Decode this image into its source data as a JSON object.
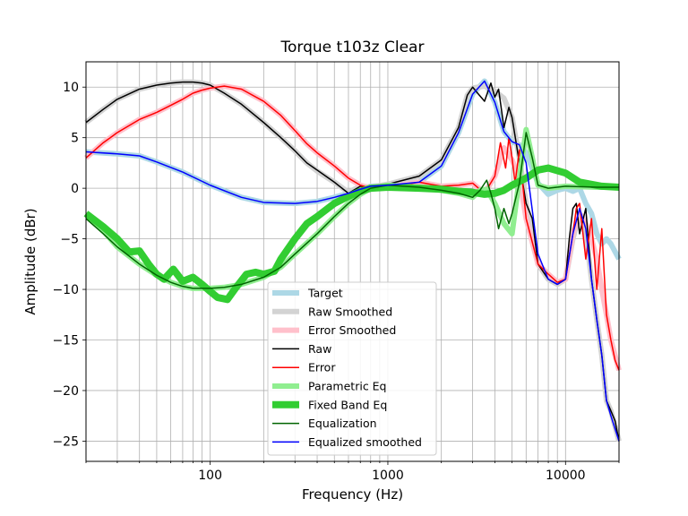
{
  "chart_data": {
    "type": "line",
    "title": "Torque t103z Clear",
    "xlabel": "Frequency (Hz)",
    "ylabel": "Amplitude (dBr)",
    "xscale": "log",
    "xlim": [
      20,
      20000
    ],
    "ylim": [
      -27,
      12.5
    ],
    "grid": true,
    "legend_position": "bottom-center",
    "x_tick_labels": [
      {
        "value": 100,
        "label": "100"
      },
      {
        "value": 1000,
        "label": "1000"
      },
      {
        "value": 10000,
        "label": "10000"
      }
    ],
    "y_tick_labels": [
      {
        "value": 10,
        "label": "10"
      },
      {
        "value": 5,
        "label": "5"
      },
      {
        "value": 0,
        "label": "0"
      },
      {
        "value": -5,
        "label": "−5"
      },
      {
        "value": -10,
        "label": "−10"
      },
      {
        "value": -15,
        "label": "−15"
      },
      {
        "value": -20,
        "label": "−20"
      },
      {
        "value": -25,
        "label": "−25"
      }
    ],
    "series": [
      {
        "name": "Target",
        "color": "#add8e6",
        "width": 6,
        "x": [
          20,
          30,
          40,
          50,
          70,
          100,
          150,
          200,
          300,
          400,
          500,
          600,
          700,
          800,
          1000,
          1500,
          2000,
          2500,
          3000,
          3500,
          4000,
          4500,
          5000,
          5500,
          6000,
          7000,
          8000,
          9000,
          10000,
          11000,
          12000,
          13000,
          14000,
          15000,
          16000,
          17000,
          18000,
          20000
        ],
        "y": [
          3.6,
          3.4,
          3.2,
          2.6,
          1.6,
          0.3,
          -0.9,
          -1.4,
          -1.5,
          -1.3,
          -0.9,
          -0.5,
          -0.1,
          0.2,
          0.3,
          0.6,
          2.2,
          5.5,
          9.3,
          10.6,
          8.5,
          5.6,
          4.6,
          4.3,
          3.5,
          0.5,
          -0.6,
          -0.2,
          0,
          -0.3,
          0,
          -1.5,
          -2.5,
          -4.5,
          -5.5,
          -5.0,
          -5.5,
          -7.0
        ]
      },
      {
        "name": "Raw Smoothed",
        "color": "#d3d3d3",
        "width": 6,
        "x": [
          20,
          25,
          30,
          40,
          50,
          60,
          70,
          80,
          90,
          100,
          120,
          150,
          200,
          250,
          300,
          350,
          400,
          500,
          600,
          700,
          800,
          1000,
          1500,
          2000,
          2500,
          2800,
          3000,
          3500,
          4000,
          4500,
          5000,
          5500,
          6000,
          7000,
          8000,
          9000,
          10000,
          11000,
          12000,
          13000,
          14000,
          15000,
          16000,
          17000,
          18000,
          20000
        ],
        "y": [
          6.5,
          7.8,
          8.8,
          9.8,
          10.2,
          10.4,
          10.5,
          10.5,
          10.4,
          10.2,
          9.4,
          8.3,
          6.5,
          5.0,
          3.7,
          2.5,
          1.7,
          0.6,
          -0.4,
          0.2,
          0.1,
          0.4,
          1.2,
          2.8,
          6.0,
          9.2,
          9.9,
          10.1,
          9.6,
          8.9,
          7.0,
          3.0,
          -1.5,
          -7.5,
          -9.0,
          -9.5,
          -9.0,
          -5.0,
          -2.5,
          -4.5,
          -9.0,
          -13.0,
          -16.5,
          -21.0,
          -22.0,
          -25.0
        ]
      },
      {
        "name": "Error Smoothed",
        "color": "#ffc0cb",
        "width": 6,
        "x": [
          20,
          25,
          30,
          40,
          50,
          60,
          70,
          80,
          90,
          100,
          120,
          150,
          200,
          250,
          300,
          350,
          400,
          500,
          600,
          700,
          800,
          1000,
          1500,
          2000,
          2500,
          3000,
          3500,
          4000,
          4500,
          5000,
          5500,
          6000,
          7000,
          8000,
          9000,
          10000,
          11000,
          12000,
          13000,
          14000,
          15000,
          16000,
          17000,
          18000,
          20000
        ],
        "y": [
          3.0,
          4.5,
          5.5,
          6.8,
          7.5,
          8.2,
          8.8,
          9.4,
          9.7,
          9.9,
          10.1,
          9.8,
          8.6,
          7.2,
          5.7,
          4.4,
          3.5,
          2.2,
          1.0,
          0.3,
          0.0,
          0.1,
          0.6,
          0.2,
          0.3,
          0.5,
          -0.5,
          1.2,
          4.0,
          2.8,
          1.0,
          -3.0,
          -7.5,
          -8.5,
          -9.3,
          -9.0,
          -4.5,
          -2.5,
          -3.5,
          -5.0,
          -7.0,
          -10.0,
          -12.5,
          -15.0,
          -18.0
        ]
      },
      {
        "name": "Raw",
        "color": "#000000",
        "width": 1.5,
        "x": [
          20,
          25,
          30,
          40,
          50,
          60,
          70,
          80,
          90,
          100,
          120,
          150,
          200,
          250,
          300,
          350,
          400,
          500,
          600,
          700,
          800,
          1000,
          1500,
          2000,
          2500,
          2800,
          3000,
          3200,
          3500,
          3800,
          4000,
          4200,
          4500,
          4800,
          5000,
          5500,
          6000,
          6500,
          7000,
          8000,
          9000,
          10000,
          10500,
          11000,
          11500,
          12000,
          13000,
          14000,
          15000,
          16000,
          17000,
          18000,
          19000,
          20000
        ],
        "y": [
          6.5,
          7.8,
          8.8,
          9.8,
          10.2,
          10.4,
          10.5,
          10.5,
          10.4,
          10.2,
          9.4,
          8.3,
          6.5,
          5.0,
          3.7,
          2.5,
          1.8,
          0.6,
          -0.5,
          0.2,
          0.1,
          0.4,
          1.2,
          2.8,
          6.0,
          9.2,
          10.0,
          9.4,
          8.6,
          10.4,
          9.0,
          9.8,
          6.0,
          8.0,
          7.0,
          2.5,
          -1.5,
          -3.0,
          -7.5,
          -9.0,
          -9.5,
          -9.0,
          -5.0,
          -2.0,
          -1.5,
          -4.5,
          -2.0,
          -9.0,
          -13.0,
          -16.5,
          -21.0,
          -22.0,
          -23.0,
          -25.0
        ]
      },
      {
        "name": "Error",
        "color": "#ff0000",
        "width": 1.5,
        "x": [
          20,
          25,
          30,
          40,
          50,
          60,
          70,
          80,
          90,
          100,
          120,
          150,
          200,
          250,
          300,
          350,
          400,
          500,
          600,
          700,
          800,
          1000,
          1500,
          2000,
          2500,
          3000,
          3500,
          4000,
          4300,
          4600,
          4800,
          5000,
          5200,
          5500,
          6000,
          7000,
          8000,
          9000,
          10000,
          11000,
          11500,
          12000,
          13000,
          14000,
          15000,
          16000,
          17000,
          18000,
          19000,
          20000
        ],
        "y": [
          3.0,
          4.5,
          5.5,
          6.8,
          7.5,
          8.2,
          8.8,
          9.4,
          9.7,
          9.9,
          10.1,
          9.8,
          8.6,
          7.2,
          5.7,
          4.4,
          3.5,
          2.2,
          1.0,
          0.3,
          0.0,
          0.1,
          0.6,
          0.2,
          0.3,
          0.5,
          -0.5,
          1.2,
          4.5,
          2.0,
          5.0,
          3.0,
          0.5,
          3.8,
          -3.0,
          -7.5,
          -8.5,
          -9.3,
          -9.0,
          -4.5,
          -2.0,
          -1.5,
          -7.0,
          -3.0,
          -10.0,
          -4.0,
          -12.5,
          -15.0,
          -17.0,
          -18.0
        ]
      },
      {
        "name": "Parametric Eq",
        "color": "#90ee90",
        "width": 6,
        "x": [
          20,
          25,
          30,
          40,
          50,
          60,
          70,
          80,
          100,
          120,
          150,
          200,
          250,
          300,
          400,
          500,
          600,
          700,
          800,
          1000,
          1500,
          2000,
          2500,
          3000,
          3300,
          3600,
          4000,
          4500,
          5000,
          5500,
          6000,
          6500,
          7000,
          8000,
          10000,
          15000,
          20000
        ],
        "y": [
          -2.5,
          -4.2,
          -5.8,
          -7.5,
          -8.6,
          -9.3,
          -9.7,
          -9.9,
          -9.9,
          -9.8,
          -9.5,
          -8.8,
          -7.8,
          -6.5,
          -4.5,
          -2.8,
          -1.5,
          -0.6,
          0.0,
          0.3,
          0.1,
          -0.2,
          -0.5,
          -0.9,
          -0.2,
          -0.1,
          -1.5,
          -3.5,
          -4.5,
          1.0,
          5.8,
          3.0,
          0.3,
          0.0,
          0.2,
          0.1,
          0.1
        ]
      },
      {
        "name": "Fixed Band Eq",
        "color": "#32cd32",
        "width": 8,
        "x": [
          20,
          25,
          30,
          35,
          40,
          45,
          50,
          55,
          62,
          70,
          80,
          90,
          100,
          110,
          125,
          140,
          160,
          180,
          200,
          230,
          250,
          300,
          350,
          400,
          500,
          600,
          700,
          800,
          1000,
          1500,
          2000,
          2500,
          3000,
          3500,
          4000,
          4500,
          5000,
          6000,
          7000,
          8000,
          10000,
          12000,
          16000,
          20000
        ],
        "y": [
          -2.5,
          -3.8,
          -5.0,
          -6.3,
          -6.2,
          -7.5,
          -8.5,
          -9.0,
          -8.0,
          -9.2,
          -8.8,
          -9.5,
          -10.2,
          -10.8,
          -11.0,
          -9.8,
          -8.5,
          -8.3,
          -8.5,
          -8.2,
          -7.0,
          -5.0,
          -3.5,
          -2.8,
          -1.5,
          -0.8,
          -0.3,
          0.0,
          0.1,
          0.0,
          -0.1,
          -0.3,
          -0.4,
          -0.6,
          -0.5,
          -0.2,
          0.3,
          1.0,
          1.8,
          2.0,
          1.5,
          0.6,
          0.2,
          0.1
        ]
      },
      {
        "name": "Equalization",
        "color": "#006400",
        "width": 1.5,
        "x": [
          20,
          25,
          30,
          40,
          50,
          60,
          70,
          80,
          100,
          120,
          150,
          200,
          250,
          300,
          400,
          500,
          600,
          700,
          800,
          1000,
          1500,
          2000,
          2500,
          3000,
          3300,
          3600,
          3800,
          4000,
          4200,
          4500,
          4800,
          5000,
          5500,
          6000,
          6500,
          7000,
          8000,
          10000,
          15000,
          20000
        ],
        "y": [
          -3.0,
          -4.5,
          -5.8,
          -7.5,
          -8.6,
          -9.3,
          -9.7,
          -9.9,
          -9.9,
          -9.8,
          -9.5,
          -8.8,
          -7.8,
          -6.5,
          -4.5,
          -2.8,
          -1.5,
          -0.6,
          0.0,
          0.3,
          0.1,
          -0.2,
          -0.5,
          -0.9,
          -0.2,
          0.8,
          -0.5,
          -2.0,
          -4.0,
          -2.0,
          -3.5,
          -2.5,
          0.5,
          5.5,
          3.0,
          0.3,
          0.0,
          0.2,
          0.1,
          0.1
        ]
      },
      {
        "name": "Equalized smoothed",
        "color": "#0000ff",
        "width": 1.5,
        "x": [
          20,
          30,
          40,
          50,
          70,
          100,
          150,
          200,
          300,
          400,
          500,
          600,
          700,
          800,
          1000,
          1500,
          2000,
          2500,
          3000,
          3500,
          4000,
          4500,
          5000,
          5500,
          6000,
          7000,
          8000,
          9000,
          10000,
          11000,
          12000,
          13000,
          14000,
          15000,
          16000,
          17000,
          18000,
          20000
        ],
        "y": [
          3.6,
          3.4,
          3.2,
          2.6,
          1.6,
          0.3,
          -0.9,
          -1.4,
          -1.5,
          -1.3,
          -0.9,
          -0.5,
          -0.1,
          0.2,
          0.3,
          0.6,
          2.2,
          5.5,
          9.3,
          10.6,
          8.5,
          5.6,
          4.6,
          4.3,
          2.5,
          -6.5,
          -9.0,
          -9.5,
          -9.0,
          -4.5,
          -2.0,
          -4.0,
          -9.0,
          -13.0,
          -16.5,
          -21.0,
          -22.5,
          -25.0
        ]
      }
    ]
  }
}
